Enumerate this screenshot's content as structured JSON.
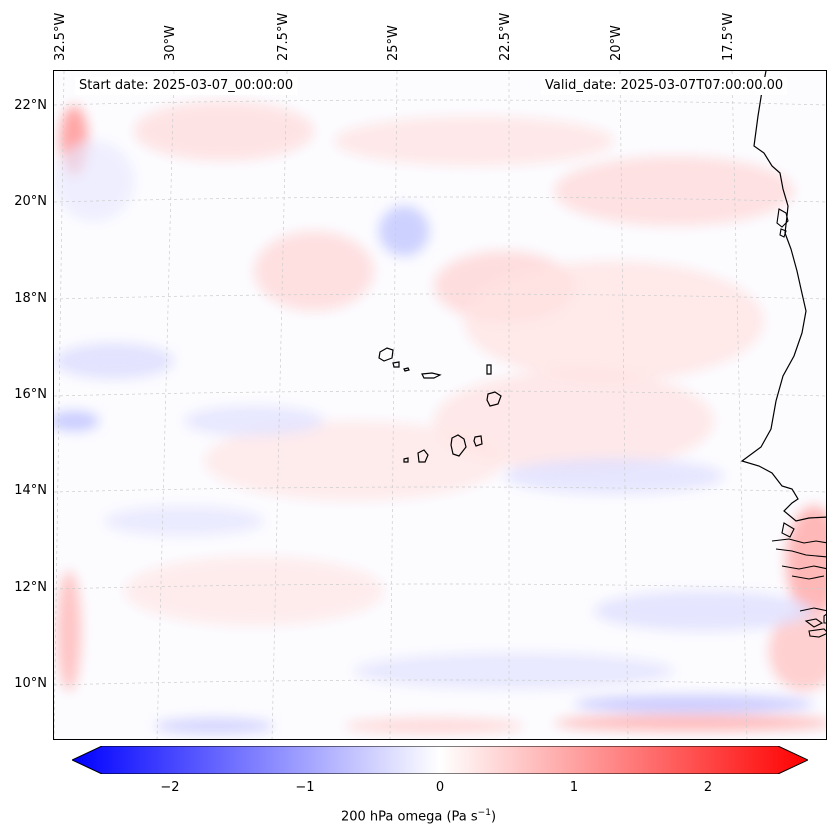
{
  "map": {
    "start_date": "Start date: 2025-03-07_00:00:00",
    "valid_date": "Valid_date: 2025-03-07T07:00:00.00",
    "lon_labels": [
      "32.5°W",
      "30°W",
      "27.5°W",
      "25°W",
      "22.5°W",
      "20°W",
      "17.5°W"
    ],
    "lat_labels": [
      "22°N",
      "20°N",
      "18°N",
      "16°N",
      "14°N",
      "12°N",
      "10°N"
    ],
    "region": "Cape Verde / West Africa coast"
  },
  "colorbar": {
    "ticks": [
      "−2",
      "−1",
      "0",
      "1",
      "2"
    ],
    "label": "200 hPa omega (Pa s",
    "label_sup": "−1",
    "label_end": ")",
    "range": [
      -2.6,
      2.6
    ],
    "colors": {
      "negative": "#0000ff",
      "zero": "#ffffff",
      "positive": "#ff0000"
    }
  }
}
